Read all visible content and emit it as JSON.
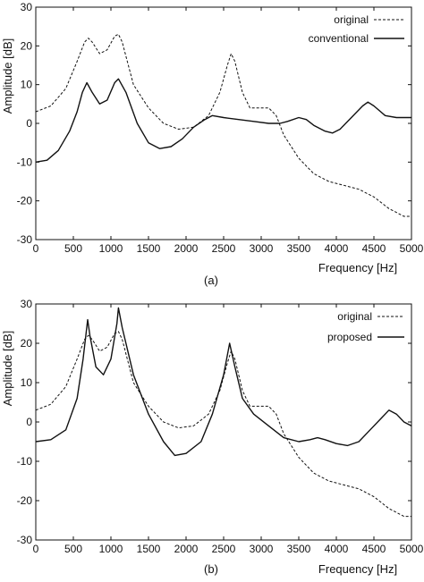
{
  "chart_data": [
    {
      "type": "line",
      "caption": "(a)",
      "xlabel": "Frequency [Hz]",
      "ylabel": "Amplitude [dB]",
      "xlim": [
        0,
        5000
      ],
      "ylim": [
        -30,
        30
      ],
      "xticks": [
        0,
        500,
        1000,
        1500,
        2000,
        2500,
        3000,
        3500,
        4000,
        4500,
        5000
      ],
      "xtick_labels": [
        "0",
        "500",
        "1000",
        "1500",
        "2000",
        "2500",
        "3000",
        "3500",
        "4000",
        "4500",
        "5000"
      ],
      "yticks": [
        -30,
        -20,
        -10,
        0,
        10,
        20,
        30
      ],
      "ytick_labels": [
        "-30",
        "-20",
        "-10",
        "0",
        "10",
        "20",
        "30"
      ],
      "grid": false,
      "legend_position": "top-right",
      "series": [
        {
          "name": "original",
          "style": "dashed",
          "points": [
            [
              0,
              3
            ],
            [
              200,
              4.5
            ],
            [
              400,
              9
            ],
            [
              550,
              16
            ],
            [
              650,
              21
            ],
            [
              700,
              22
            ],
            [
              750,
              21
            ],
            [
              850,
              18
            ],
            [
              950,
              19
            ],
            [
              1050,
              22.5
            ],
            [
              1100,
              23
            ],
            [
              1150,
              21
            ],
            [
              1300,
              10
            ],
            [
              1500,
              4
            ],
            [
              1700,
              0
            ],
            [
              1900,
              -1.5
            ],
            [
              2100,
              -1
            ],
            [
              2300,
              2
            ],
            [
              2450,
              8
            ],
            [
              2550,
              15
            ],
            [
              2600,
              18
            ],
            [
              2650,
              16
            ],
            [
              2750,
              8
            ],
            [
              2850,
              4
            ],
            [
              3000,
              4
            ],
            [
              3100,
              4
            ],
            [
              3200,
              2
            ],
            [
              3300,
              -3
            ],
            [
              3500,
              -9
            ],
            [
              3700,
              -13
            ],
            [
              3900,
              -15
            ],
            [
              4100,
              -16
            ],
            [
              4300,
              -17
            ],
            [
              4500,
              -19
            ],
            [
              4700,
              -22
            ],
            [
              4900,
              -24
            ],
            [
              5000,
              -24
            ]
          ]
        },
        {
          "name": "conventional",
          "style": "solid",
          "points": [
            [
              0,
              -10
            ],
            [
              150,
              -9.5
            ],
            [
              300,
              -7
            ],
            [
              450,
              -2
            ],
            [
              550,
              3
            ],
            [
              620,
              8
            ],
            [
              680,
              10.5
            ],
            [
              750,
              8
            ],
            [
              850,
              5
            ],
            [
              950,
              6
            ],
            [
              1050,
              10.5
            ],
            [
              1100,
              11.5
            ],
            [
              1200,
              8
            ],
            [
              1350,
              0
            ],
            [
              1500,
              -5
            ],
            [
              1650,
              -6.5
            ],
            [
              1800,
              -6
            ],
            [
              1950,
              -4
            ],
            [
              2100,
              -1
            ],
            [
              2250,
              1
            ],
            [
              2350,
              2
            ],
            [
              2500,
              1.5
            ],
            [
              2700,
              1
            ],
            [
              2900,
              0.5
            ],
            [
              3100,
              0
            ],
            [
              3250,
              0
            ],
            [
              3350,
              0.5
            ],
            [
              3500,
              1.5
            ],
            [
              3600,
              1
            ],
            [
              3700,
              -0.5
            ],
            [
              3850,
              -2
            ],
            [
              3950,
              -2.5
            ],
            [
              4050,
              -1.5
            ],
            [
              4200,
              1.5
            ],
            [
              4350,
              4.5
            ],
            [
              4420,
              5.5
            ],
            [
              4500,
              4.5
            ],
            [
              4650,
              2
            ],
            [
              4800,
              1.5
            ],
            [
              5000,
              1.5
            ]
          ]
        }
      ]
    },
    {
      "type": "line",
      "caption": "(b)",
      "xlabel": "Frequency [Hz]",
      "ylabel": "Amplitude [dB]",
      "xlim": [
        0,
        5000
      ],
      "ylim": [
        -30,
        30
      ],
      "xticks": [
        0,
        500,
        1000,
        1500,
        2000,
        2500,
        3000,
        3500,
        4000,
        4500,
        5000
      ],
      "xtick_labels": [
        "0",
        "500",
        "1000",
        "1500",
        "2000",
        "2500",
        "3000",
        "3500",
        "4000",
        "4500",
        "5000"
      ],
      "yticks": [
        -30,
        -20,
        -10,
        0,
        10,
        20,
        30
      ],
      "ytick_labels": [
        "-30",
        "-20",
        "-10",
        "0",
        "10",
        "20",
        "30"
      ],
      "grid": false,
      "legend_position": "top-right",
      "series": [
        {
          "name": "original",
          "style": "dashed",
          "points": [
            [
              0,
              3
            ],
            [
              200,
              4.5
            ],
            [
              400,
              9
            ],
            [
              550,
              16
            ],
            [
              650,
              21
            ],
            [
              700,
              22
            ],
            [
              750,
              21
            ],
            [
              850,
              18
            ],
            [
              950,
              19
            ],
            [
              1050,
              22.5
            ],
            [
              1100,
              23
            ],
            [
              1150,
              21
            ],
            [
              1300,
              10
            ],
            [
              1500,
              4
            ],
            [
              1700,
              0
            ],
            [
              1900,
              -1.5
            ],
            [
              2100,
              -1
            ],
            [
              2300,
              2
            ],
            [
              2450,
              8
            ],
            [
              2550,
              15
            ],
            [
              2600,
              18
            ],
            [
              2650,
              16
            ],
            [
              2750,
              8
            ],
            [
              2850,
              4
            ],
            [
              3000,
              4
            ],
            [
              3100,
              4
            ],
            [
              3200,
              2
            ],
            [
              3300,
              -3
            ],
            [
              3500,
              -9
            ],
            [
              3700,
              -13
            ],
            [
              3900,
              -15
            ],
            [
              4100,
              -16
            ],
            [
              4300,
              -17
            ],
            [
              4500,
              -19
            ],
            [
              4700,
              -22
            ],
            [
              4900,
              -24
            ],
            [
              5000,
              -24
            ]
          ]
        },
        {
          "name": "proposed",
          "style": "solid",
          "points": [
            [
              0,
              -5
            ],
            [
              200,
              -4.5
            ],
            [
              400,
              -2
            ],
            [
              550,
              6
            ],
            [
              630,
              16
            ],
            [
              690,
              26
            ],
            [
              720,
              22
            ],
            [
              800,
              14
            ],
            [
              900,
              12
            ],
            [
              1000,
              16
            ],
            [
              1080,
              25
            ],
            [
              1100,
              29
            ],
            [
              1150,
              24
            ],
            [
              1300,
              12
            ],
            [
              1500,
              2
            ],
            [
              1700,
              -5
            ],
            [
              1850,
              -8.5
            ],
            [
              2000,
              -8
            ],
            [
              2200,
              -5
            ],
            [
              2350,
              2
            ],
            [
              2500,
              12
            ],
            [
              2580,
              20
            ],
            [
              2650,
              14
            ],
            [
              2750,
              6
            ],
            [
              2900,
              2
            ],
            [
              3100,
              -1
            ],
            [
              3300,
              -4
            ],
            [
              3500,
              -5
            ],
            [
              3650,
              -4.5
            ],
            [
              3750,
              -4
            ],
            [
              3850,
              -4.5
            ],
            [
              4000,
              -5.5
            ],
            [
              4150,
              -6
            ],
            [
              4300,
              -5
            ],
            [
              4450,
              -2
            ],
            [
              4600,
              1
            ],
            [
              4700,
              3
            ],
            [
              4800,
              2
            ],
            [
              4900,
              0
            ],
            [
              5000,
              -1
            ]
          ]
        }
      ]
    }
  ]
}
